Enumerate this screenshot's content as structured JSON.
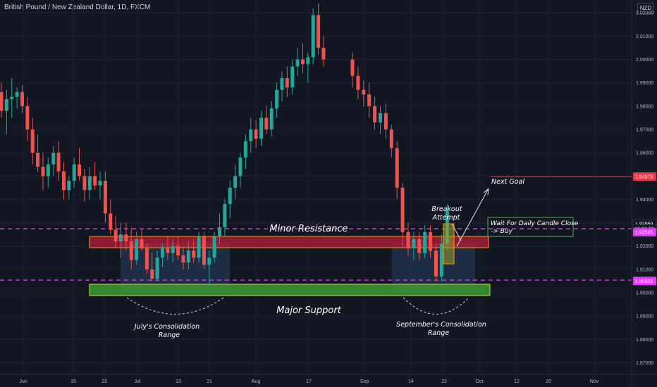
{
  "header": {
    "title": "British Pound / New Zealand Dollar, 1D, FXCM"
  },
  "currency_badge": "NZD",
  "colors": {
    "bull": "#26a69a",
    "bear": "#ef5350",
    "background": "#131722",
    "grid": "#1e222d"
  },
  "chart_data": {
    "type": "candlestick",
    "title": "British Pound / New Zealand Dollar, 1D, FXCM",
    "ylim": [
      1.865,
      2.0255
    ],
    "y_ticks": [
      "2.02000",
      "2.01000",
      "2.00000",
      "1.99000",
      "1.98000",
      "1.97000",
      "1.96000",
      "1.95000",
      "1.94000",
      "1.93000",
      "1.92000",
      "1.91000",
      "1.90000",
      "1.89000",
      "1.88000",
      "1.87000"
    ],
    "x_ticks": [
      "Jun",
      "15",
      "23",
      "Jul",
      "13",
      "21",
      "Aug",
      "17",
      "Sep",
      "14",
      "22",
      "Oct",
      "12",
      "20",
      "Nov"
    ],
    "price_labels": [
      {
        "text": "1.94979",
        "value": 1.94979,
        "color": "#f23645"
      },
      {
        "text": "1.92959",
        "value": 1.92959,
        "color": "#131722"
      },
      {
        "text": "11:01:02",
        "value": 1.9274,
        "color": "#131722"
      },
      {
        "text": "1.92595",
        "value": 1.92595,
        "color": "#e040fb"
      },
      {
        "text": "1.90503",
        "value": 1.90503,
        "color": "#e040fb"
      }
    ],
    "zones": [
      {
        "name": "Minor Resistance",
        "low": 1.9258,
        "high": 1.9295,
        "color": "#f23645"
      },
      {
        "name": "Major Support",
        "low": 1.9033,
        "high": 1.9076,
        "color": "#4caf50"
      }
    ],
    "dashed_levels": [
      1.9274,
      1.9054
    ],
    "target_level": 1.94979,
    "ohlc": [
      [
        1.986,
        1.99,
        1.975,
        1.978
      ],
      [
        1.978,
        1.987,
        1.968,
        1.983
      ],
      [
        1.983,
        1.992,
        1.975,
        1.984
      ],
      [
        1.984,
        1.988,
        1.979,
        1.986
      ],
      [
        1.986,
        1.989,
        1.977,
        1.98
      ],
      [
        1.98,
        1.984,
        1.965,
        1.97
      ],
      [
        1.97,
        1.975,
        1.955,
        1.96
      ],
      [
        1.96,
        1.968,
        1.952,
        1.954
      ],
      [
        1.954,
        1.96,
        1.944,
        1.95
      ],
      [
        1.95,
        1.958,
        1.945,
        1.955
      ],
      [
        1.955,
        1.963,
        1.95,
        1.96
      ],
      [
        1.96,
        1.965,
        1.948,
        1.952
      ],
      [
        1.952,
        1.956,
        1.94,
        1.944
      ],
      [
        1.944,
        1.95,
        1.94,
        1.948
      ],
      [
        1.948,
        1.958,
        1.945,
        1.955
      ],
      [
        1.955,
        1.962,
        1.948,
        1.95
      ],
      [
        1.95,
        1.953,
        1.939,
        1.944
      ],
      [
        1.944,
        1.954,
        1.94,
        1.95
      ],
      [
        1.95,
        1.956,
        1.944,
        1.946
      ],
      [
        1.946,
        1.952,
        1.94,
        1.948
      ],
      [
        1.948,
        1.952,
        1.93,
        1.934
      ],
      [
        1.934,
        1.94,
        1.925,
        1.927
      ],
      [
        1.927,
        1.933,
        1.919,
        1.922
      ],
      [
        1.922,
        1.93,
        1.915,
        1.925
      ],
      [
        1.925,
        1.93,
        1.918,
        1.922
      ],
      [
        1.922,
        1.928,
        1.91,
        1.914
      ],
      [
        1.914,
        1.926,
        1.912,
        1.923
      ],
      [
        1.923,
        1.927,
        1.918,
        1.919
      ],
      [
        1.919,
        1.921,
        1.908,
        1.91
      ],
      [
        1.91,
        1.917,
        1.905,
        1.906
      ],
      [
        1.906,
        1.918,
        1.905,
        1.915
      ],
      [
        1.915,
        1.921,
        1.911,
        1.919
      ],
      [
        1.919,
        1.924,
        1.914,
        1.917
      ],
      [
        1.917,
        1.923,
        1.913,
        1.92
      ],
      [
        1.92,
        1.924,
        1.914,
        1.916
      ],
      [
        1.916,
        1.92,
        1.91,
        1.913
      ],
      [
        1.913,
        1.922,
        1.91,
        1.918
      ],
      [
        1.918,
        1.923,
        1.913,
        1.915
      ],
      [
        1.915,
        1.926,
        1.913,
        1.924
      ],
      [
        1.924,
        1.926,
        1.91,
        1.912
      ],
      [
        1.912,
        1.918,
        1.903,
        1.915
      ],
      [
        1.915,
        1.926,
        1.913,
        1.924
      ],
      [
        1.924,
        1.934,
        1.921,
        1.928
      ],
      [
        1.928,
        1.94,
        1.924,
        1.938
      ],
      [
        1.938,
        1.948,
        1.932,
        1.945
      ],
      [
        1.945,
        1.955,
        1.94,
        1.95
      ],
      [
        1.95,
        1.96,
        1.945,
        1.958
      ],
      [
        1.958,
        1.968,
        1.953,
        1.965
      ],
      [
        1.965,
        1.975,
        1.96,
        1.97
      ],
      [
        1.97,
        1.974,
        1.962,
        1.966
      ],
      [
        1.966,
        1.978,
        1.963,
        1.975
      ],
      [
        1.975,
        1.98,
        1.968,
        1.97
      ],
      [
        1.97,
        1.982,
        1.967,
        1.979
      ],
      [
        1.979,
        1.99,
        1.975,
        1.987
      ],
      [
        1.987,
        1.995,
        1.982,
        1.992
      ],
      [
        1.992,
        1.997,
        1.984,
        1.988
      ],
      [
        1.988,
        2.0,
        1.985,
        1.997
      ],
      [
        1.997,
        2.005,
        1.993,
        2.0
      ],
      [
        2.0,
        2.007,
        1.994,
        1.998
      ],
      [
        1.998,
        2.003,
        1.99,
        2.001
      ],
      [
        2.001,
        2.022,
        1.998,
        2.019
      ],
      [
        2.019,
        2.024,
        2.002,
        2.005
      ],
      [
        2.005,
        2.01,
        1.997,
        2.0
      ],
      [
        2.0,
        2.003,
        1.988,
        1.993
      ],
      [
        1.993,
        1.997,
        1.983,
        1.987
      ],
      [
        1.987,
        1.991,
        1.98,
        1.985
      ],
      [
        1.985,
        1.99,
        1.975,
        1.98
      ],
      [
        1.98,
        1.984,
        1.97,
        1.973
      ],
      [
        1.973,
        1.98,
        1.968,
        1.977
      ],
      [
        1.977,
        1.981,
        1.966,
        1.97
      ],
      [
        1.97,
        1.972,
        1.958,
        1.962
      ],
      [
        1.962,
        1.965,
        1.94,
        1.945
      ],
      [
        1.945,
        1.947,
        1.92,
        1.926
      ],
      [
        1.926,
        1.93,
        1.916,
        1.919
      ],
      [
        1.919,
        1.926,
        1.914,
        1.923
      ],
      [
        1.923,
        1.926,
        1.914,
        1.917
      ],
      [
        1.917,
        1.929,
        1.915,
        1.926
      ],
      [
        1.926,
        1.929,
        1.915,
        1.918
      ],
      [
        1.918,
        1.921,
        1.905,
        1.907
      ],
      [
        1.907,
        1.925,
        1.905,
        1.921
      ],
      [
        1.921,
        1.938,
        1.918,
        1.935
      ]
    ]
  },
  "annotations": {
    "minor_resistance": "Minor Resistance",
    "major_support": "Major Support",
    "july_range_1": "July's Consolidation",
    "july_range_2": "Range",
    "sept_range_1": "September's Consolidation",
    "sept_range_2": "Range",
    "breakout_1": "Breakout",
    "breakout_2": "Attempt",
    "next_goal": "Next Goal",
    "wait_1": "Wait For Daily Candle Close",
    "wait_2": "-> Buy"
  }
}
